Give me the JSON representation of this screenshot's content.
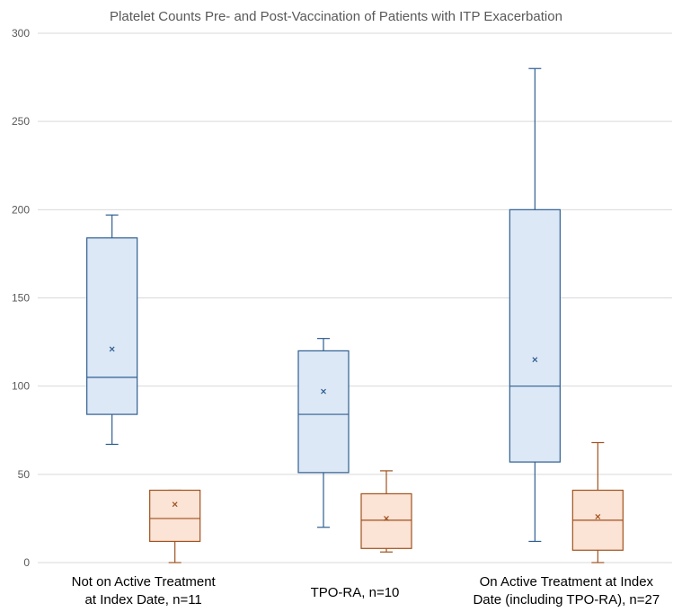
{
  "chart_data": {
    "type": "box",
    "title": "Platelet Counts Pre- and Post-Vaccination of Patients with ITP Exacerbation",
    "xlabel": "",
    "ylabel": "",
    "ylim": [
      0,
      300
    ],
    "yticks": [
      "0",
      "50",
      "100",
      "150",
      "200",
      "250",
      "300"
    ],
    "grid": true,
    "legend": "none",
    "categories": [
      [
        "Not on Active Treatment",
        "at Index Date, n=11"
      ],
      [
        "TPO-RA, n=10"
      ],
      [
        "On Active Treatment at Index",
        "Date (including TPO-RA), n=27"
      ]
    ],
    "series": [
      {
        "color": "#2E5E91",
        "fill": "#DDE8F6",
        "boxes": [
          {
            "min": 67,
            "q1": 84,
            "median": 105,
            "q3": 184,
            "max": 197,
            "mean": 121
          },
          {
            "min": 20,
            "q1": 51,
            "median": 84,
            "q3": 120,
            "max": 127,
            "mean": 97
          },
          {
            "min": 12,
            "q1": 57,
            "median": 100,
            "q3": 200,
            "max": 280,
            "mean": 115
          }
        ]
      },
      {
        "color": "#A0521E",
        "fill": "#FBE3D5",
        "boxes": [
          {
            "min": 0,
            "q1": 12,
            "median": 25,
            "q3": 41,
            "max": 41,
            "mean": 33
          },
          {
            "min": 6,
            "q1": 8,
            "median": 24,
            "q3": 39,
            "max": 52,
            "mean": 25
          },
          {
            "min": 0,
            "q1": 7,
            "median": 24,
            "q3": 41,
            "max": 68,
            "mean": 26
          }
        ]
      }
    ]
  }
}
